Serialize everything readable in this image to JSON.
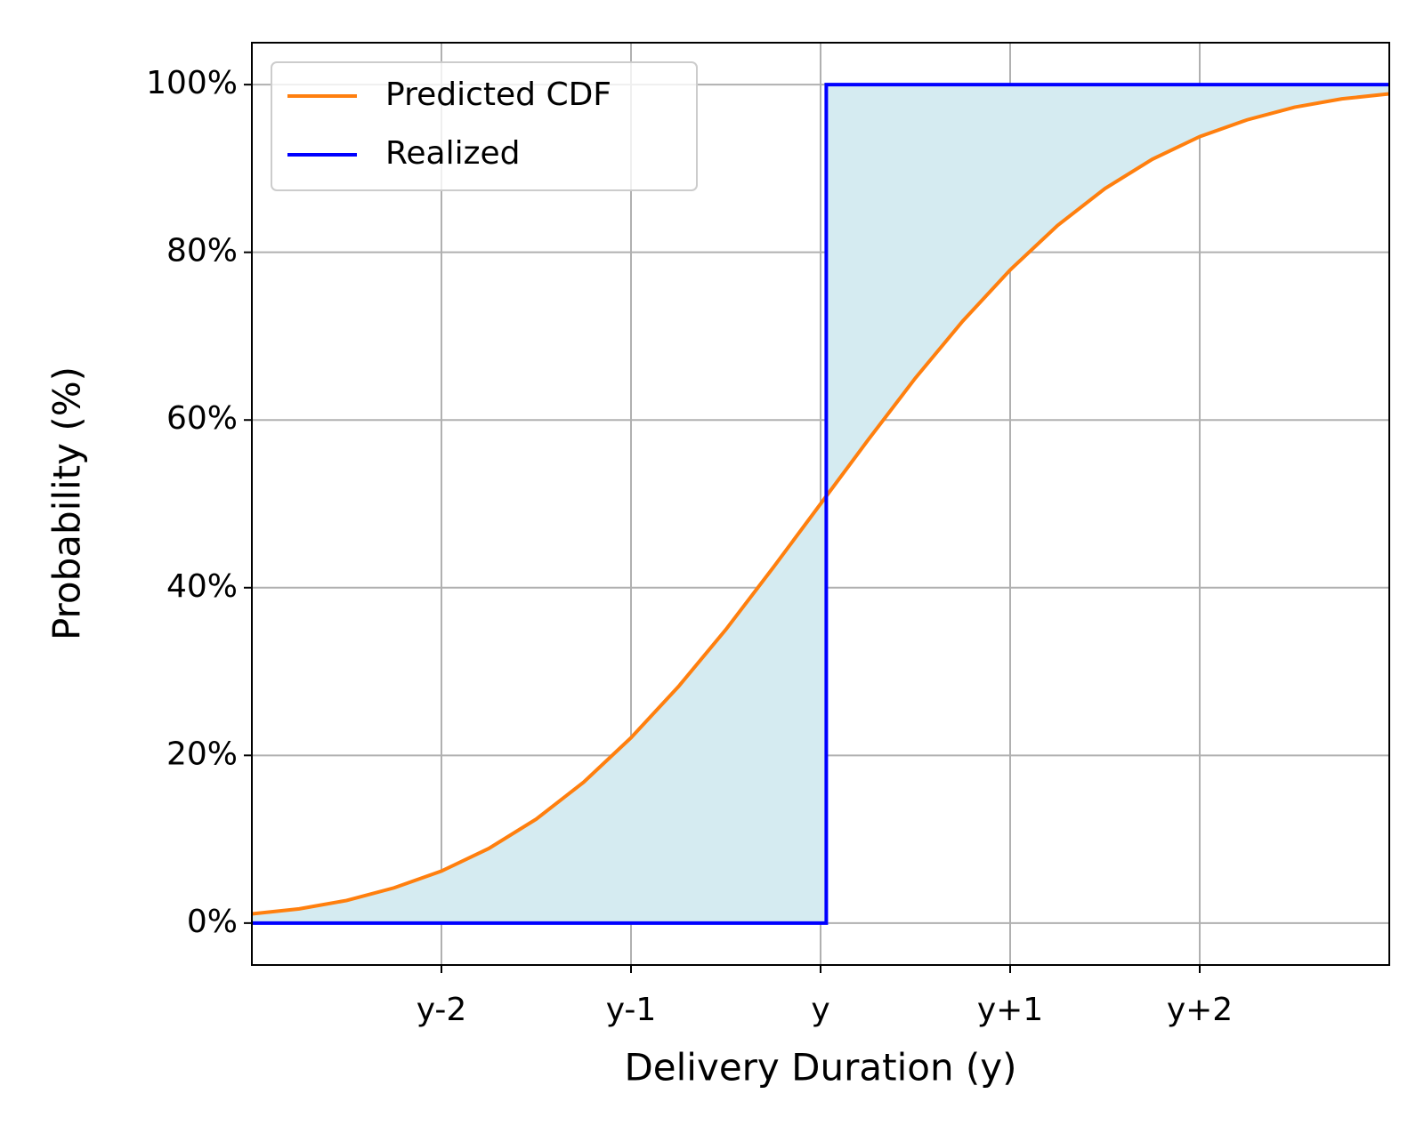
{
  "chart_data": {
    "type": "line",
    "xlabel": "Delivery Duration (y)",
    "ylabel": "Probability (%)",
    "xlim": [
      -3,
      3
    ],
    "ylim": [
      -5,
      105
    ],
    "xticks": [
      {
        "value": -2,
        "label": "y-2"
      },
      {
        "value": -1,
        "label": "y-1"
      },
      {
        "value": 0,
        "label": "y"
      },
      {
        "value": 1,
        "label": "y+1"
      },
      {
        "value": 2,
        "label": "y+2"
      }
    ],
    "yticks": [
      {
        "value": 0,
        "label": "0%"
      },
      {
        "value": 20,
        "label": "20%"
      },
      {
        "value": 40,
        "label": "40%"
      },
      {
        "value": 60,
        "label": "60%"
      },
      {
        "value": 80,
        "label": "80%"
      },
      {
        "value": 100,
        "label": "100%"
      }
    ],
    "grid": true,
    "legend": "upper left",
    "fill_between_color": "#d5ebf1",
    "series": [
      {
        "name": "Predicted CDF",
        "color": "#ff7f0e",
        "x": [
          -3,
          -2.75,
          -2.5,
          -2.25,
          -2,
          -1.75,
          -1.5,
          -1.25,
          -1,
          -0.75,
          -0.5,
          -0.25,
          0,
          0.25,
          0.5,
          0.75,
          1,
          1.25,
          1.5,
          1.75,
          2,
          2.25,
          2.5,
          2.75,
          3
        ],
        "values": [
          1.1,
          1.7,
          2.7,
          4.2,
          6.2,
          8.9,
          12.4,
          16.8,
          22.1,
          28.2,
          35.0,
          42.4,
          50.0,
          57.6,
          65.0,
          71.8,
          77.9,
          83.2,
          87.6,
          91.1,
          93.8,
          95.8,
          97.3,
          98.3,
          98.9
        ]
      },
      {
        "name": "Realized",
        "color": "#0000ff",
        "x": [
          -3,
          0.03,
          0.03,
          3
        ],
        "values": [
          0,
          0,
          100,
          100
        ]
      }
    ]
  }
}
